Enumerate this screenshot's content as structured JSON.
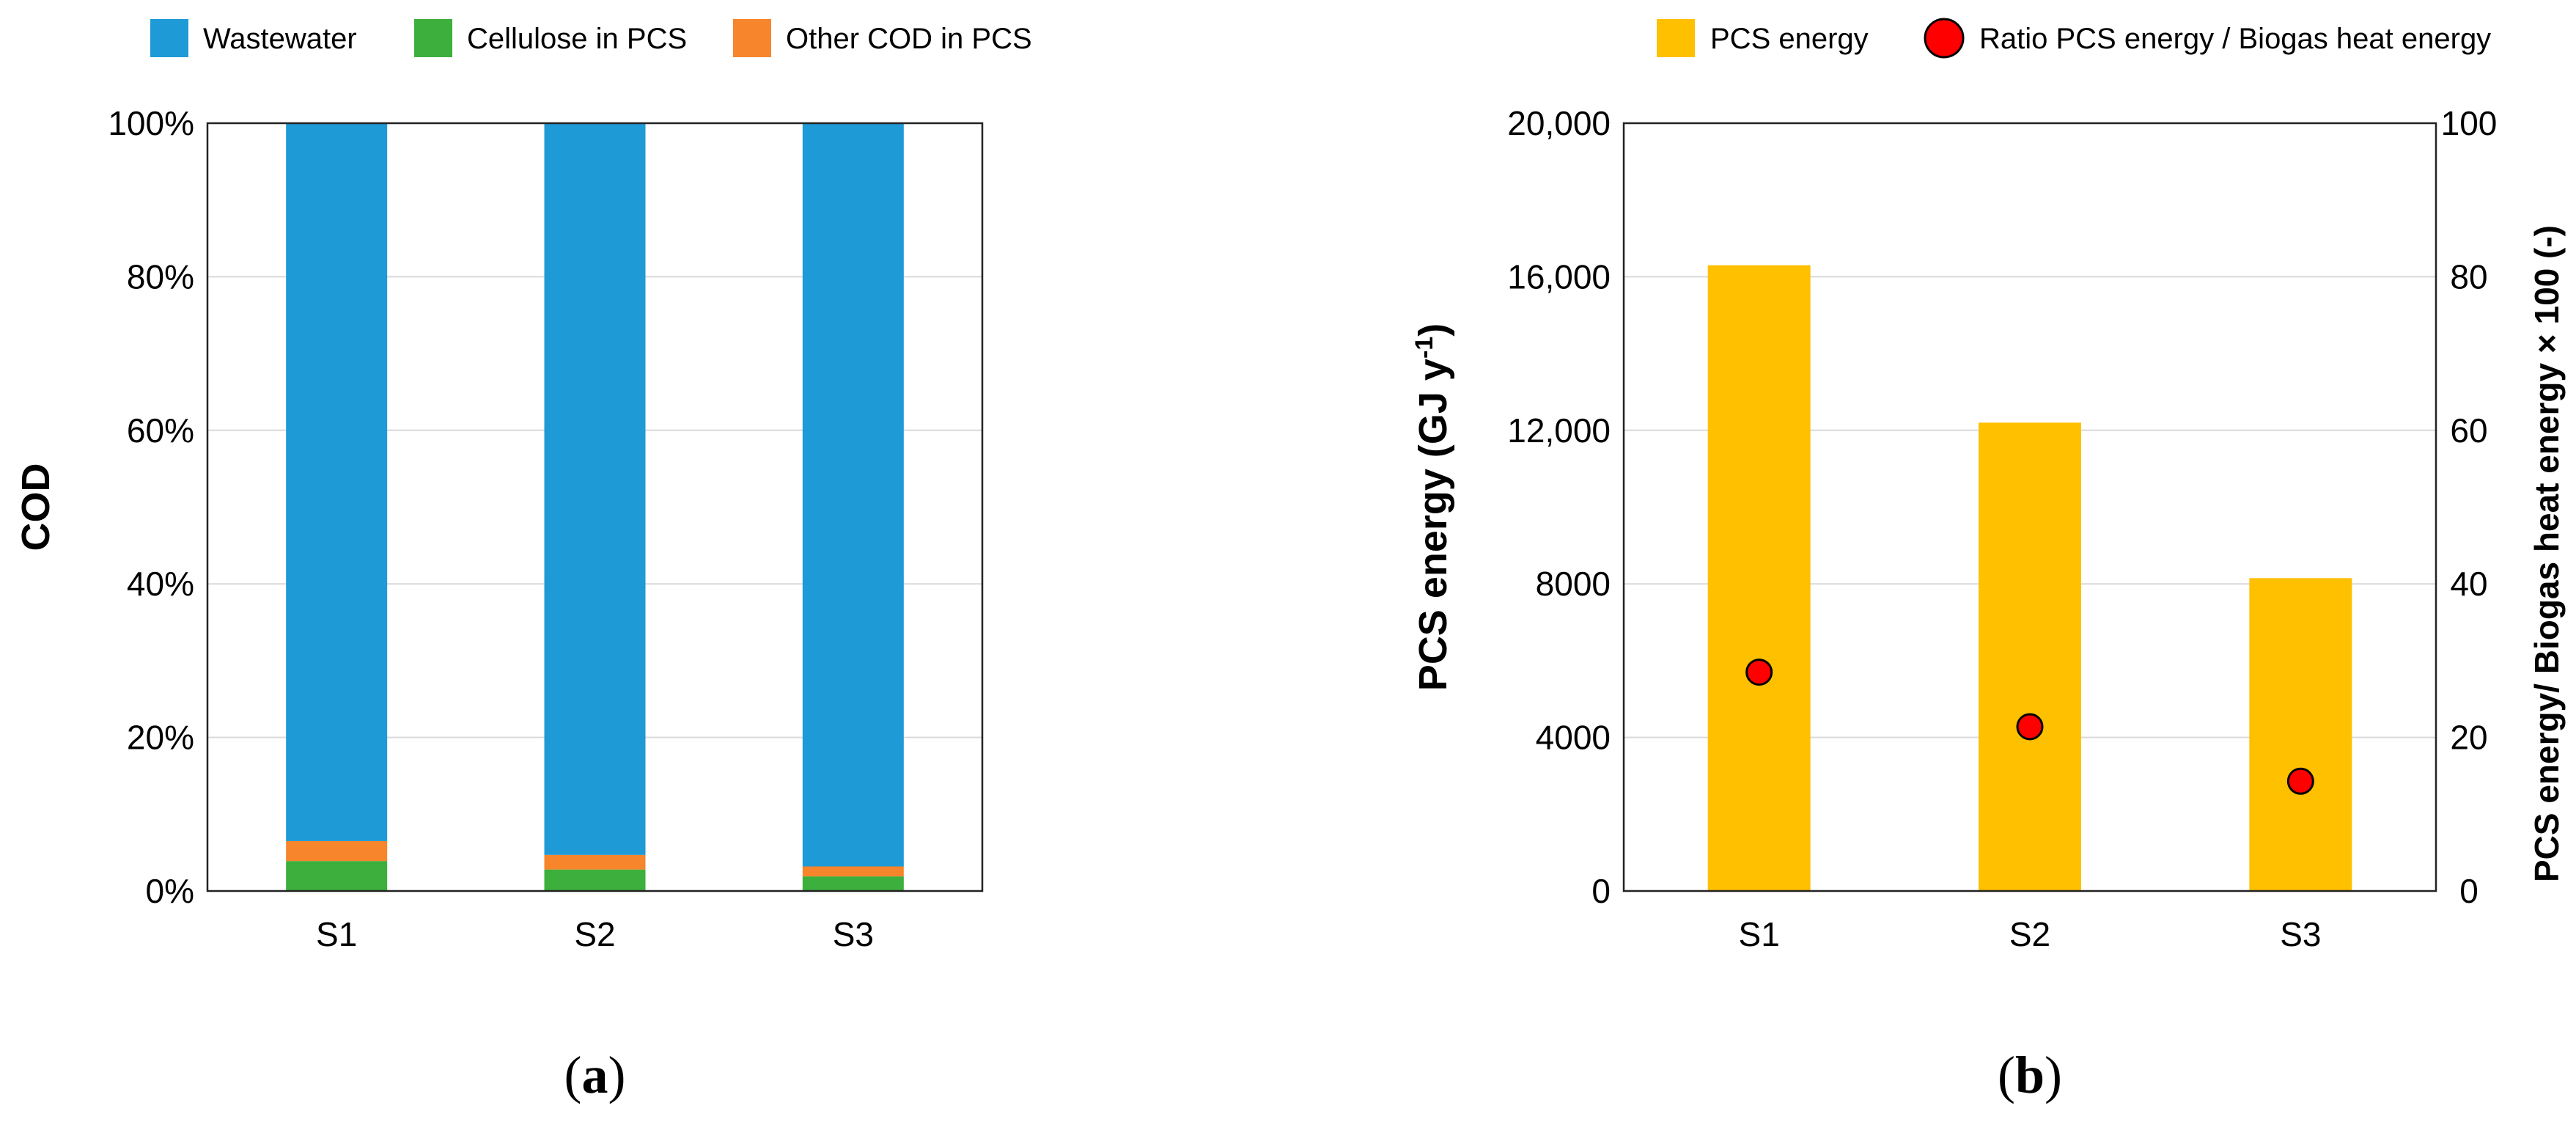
{
  "chart_data": [
    {
      "type": "bar",
      "stacked": true,
      "panel_label": "(a)",
      "categories": [
        "S1",
        "S2",
        "S3"
      ],
      "series": [
        {
          "name": "Wastewater",
          "values": [
            93.5,
            95.3,
            96.8
          ],
          "color": "#1e9ad6"
        },
        {
          "name": "Cellulose in PCS",
          "values": [
            3.9,
            2.8,
            1.9
          ],
          "color": "#3daf3c"
        },
        {
          "name": "Other COD in PCS",
          "values": [
            2.6,
            1.9,
            1.3
          ],
          "color": "#f6852b"
        }
      ],
      "stack_order": [
        "Cellulose in PCS",
        "Other COD in PCS",
        "Wastewater"
      ],
      "ylabel": "COD",
      "ylim": [
        0,
        100
      ],
      "yticks": [
        "0%",
        "20%",
        "40%",
        "60%",
        "80%",
        "100%"
      ],
      "grid": true,
      "legend": "top"
    },
    {
      "type": "bar",
      "panel_label": "(b)",
      "categories": [
        "S1",
        "S2",
        "S3"
      ],
      "series": [
        {
          "name": "PCS energy",
          "values": [
            16300,
            12200,
            8150
          ],
          "color": "#ffc000",
          "axis": "left"
        },
        {
          "name": "Ratio PCS energy / Biogas heat energy",
          "type": "scatter",
          "values": [
            28.5,
            21.4,
            14.3
          ],
          "color": "#ff0000",
          "axis": "right"
        }
      ],
      "ylabel": "PCS energy (GJ y-1)",
      "ylabel_parts": {
        "main": "PCS energy (GJ y",
        "superscript": "-1",
        "end": ")"
      },
      "ylim": [
        0,
        20000
      ],
      "yticks": [
        "0",
        "4000",
        "8000",
        "12,000",
        "16,000",
        "20,000"
      ],
      "y2label": "PCS energy/ Biogas heat energy × 100 (-)",
      "y2lim": [
        0,
        100
      ],
      "y2ticks": [
        "0",
        "20",
        "40",
        "60",
        "80",
        "100"
      ],
      "grid": true,
      "legend": "top"
    }
  ]
}
